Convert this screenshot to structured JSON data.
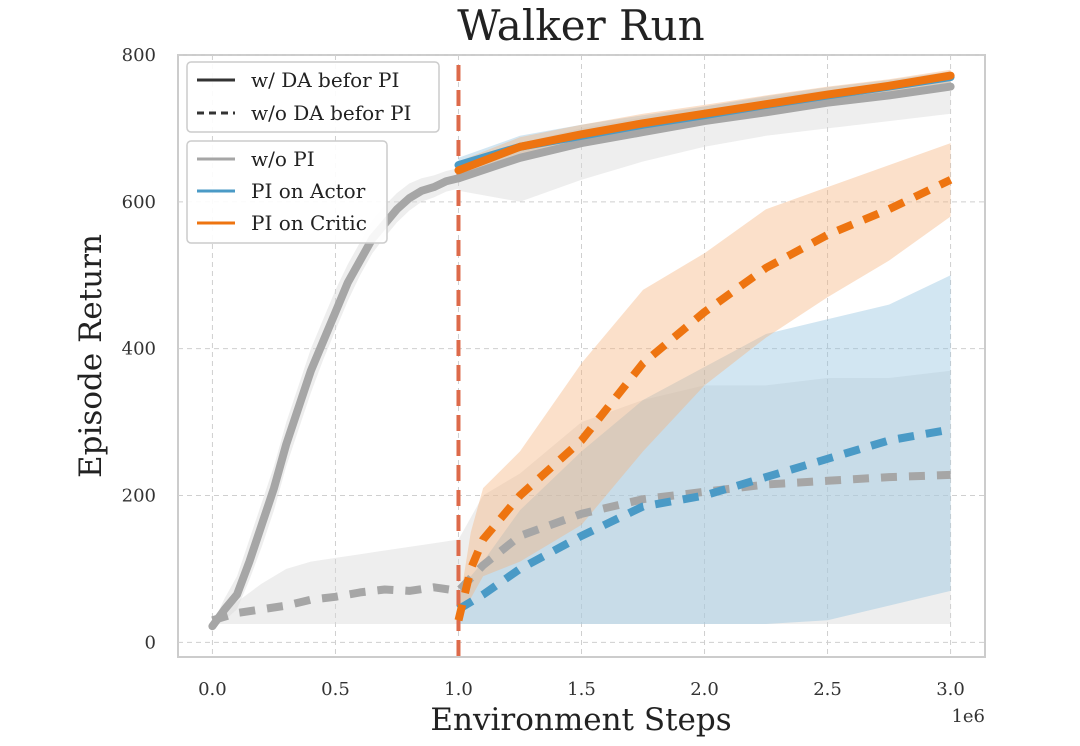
{
  "chart_data": {
    "type": "line",
    "title": "Walker Run",
    "xlabel": "Environment Steps",
    "ylabel": "Episode Return",
    "x_scale_label": "1e6",
    "xlim": [
      -0.14,
      3.14
    ],
    "ylim": [
      -20,
      800
    ],
    "x_ticks": [
      0.0,
      0.5,
      1.0,
      1.5,
      2.0,
      2.5,
      3.0
    ],
    "x_tick_labels": [
      "0.0",
      "0.5",
      "1.0",
      "1.5",
      "2.0",
      "2.5",
      "3.0"
    ],
    "y_ticks": [
      0,
      200,
      400,
      600,
      800
    ],
    "y_tick_labels": [
      "0",
      "200",
      "400",
      "600",
      "800"
    ],
    "grid": true,
    "vline": {
      "x": 1.0,
      "color": "#dd6a4a",
      "style": "dashed"
    },
    "colors": {
      "wo_pi": "#a6a6a6",
      "pi_actor": "#4a9ac6",
      "pi_critic": "#ee7410"
    },
    "legend_style": [
      {
        "label": "w/ DA befor PI",
        "style": "solid"
      },
      {
        "label": "w/o DA befor PI",
        "style": "dashed"
      }
    ],
    "legend_methods": [
      {
        "label": "w/o PI",
        "color": "#a6a6a6"
      },
      {
        "label": "PI on Actor",
        "color": "#4a9ac6"
      },
      {
        "label": "PI on Critic",
        "color": "#ee7410"
      }
    ],
    "series": [
      {
        "name": "w/o PI (w/ DA)",
        "method": "wo_pi",
        "style": "solid",
        "x": [
          0,
          0.05,
          0.1,
          0.15,
          0.2,
          0.25,
          0.3,
          0.35,
          0.4,
          0.45,
          0.5,
          0.55,
          0.6,
          0.65,
          0.7,
          0.75,
          0.8,
          0.85,
          0.9,
          0.95,
          1.0
        ],
        "y": [
          22,
          45,
          65,
          110,
          160,
          210,
          270,
          320,
          370,
          410,
          450,
          490,
          520,
          550,
          570,
          590,
          605,
          615,
          620,
          628,
          632
        ],
        "lower": [
          20,
          30,
          45,
          85,
          130,
          180,
          240,
          290,
          340,
          385,
          425,
          465,
          500,
          530,
          552,
          572,
          588,
          600,
          606,
          614,
          618
        ],
        "upper": [
          25,
          60,
          90,
          140,
          190,
          240,
          300,
          350,
          400,
          440,
          480,
          515,
          545,
          575,
          595,
          612,
          625,
          632,
          636,
          642,
          646
        ]
      },
      {
        "name": "w/o PI (w/ DA) continued",
        "method": "wo_pi",
        "style": "solid",
        "x": [
          1.0,
          1.25,
          1.5,
          1.75,
          2.0,
          2.25,
          2.5,
          2.75,
          3.0
        ],
        "y": [
          632,
          660,
          680,
          695,
          710,
          722,
          735,
          745,
          757
        ],
        "lower": [
          615,
          600,
          630,
          655,
          675,
          690,
          700,
          710,
          720
        ],
        "upper": [
          650,
          680,
          700,
          715,
          730,
          742,
          752,
          762,
          770
        ]
      },
      {
        "name": "PI on Actor (w/ DA)",
        "method": "pi_actor",
        "style": "solid",
        "x": [
          1.0,
          1.25,
          1.5,
          1.75,
          2.0,
          2.25,
          2.5,
          2.75,
          3.0
        ],
        "y": [
          650,
          675,
          690,
          705,
          718,
          732,
          745,
          757,
          770
        ],
        "lower": [
          640,
          660,
          675,
          690,
          705,
          720,
          735,
          748,
          760
        ],
        "upper": [
          660,
          690,
          705,
          718,
          730,
          744,
          756,
          766,
          778
        ]
      },
      {
        "name": "PI on Critic (w/ DA)",
        "method": "pi_critic",
        "style": "solid",
        "x": [
          1.0,
          1.25,
          1.5,
          1.75,
          2.0,
          2.25,
          2.5,
          2.75,
          3.0
        ],
        "y": [
          643,
          675,
          692,
          707,
          720,
          733,
          746,
          758,
          772
        ],
        "lower": [
          632,
          662,
          680,
          695,
          708,
          722,
          737,
          750,
          762
        ],
        "upper": [
          655,
          688,
          705,
          720,
          732,
          745,
          757,
          767,
          780
        ]
      },
      {
        "name": "w/o PI (w/o DA)",
        "method": "wo_pi",
        "style": "dashed",
        "x": [
          0,
          0.1,
          0.2,
          0.3,
          0.4,
          0.5,
          0.6,
          0.7,
          0.8,
          0.9,
          1.0,
          1.1,
          1.25,
          1.5,
          1.75,
          2.0,
          2.25,
          2.5,
          2.75,
          3.0
        ],
        "y": [
          30,
          40,
          45,
          50,
          58,
          62,
          68,
          72,
          70,
          75,
          70,
          105,
          145,
          175,
          195,
          205,
          215,
          220,
          225,
          228
        ],
        "lower": [
          25,
          25,
          25,
          25,
          25,
          25,
          25,
          25,
          25,
          25,
          25,
          25,
          25,
          25,
          25,
          25,
          25,
          25,
          25,
          25
        ],
        "upper": [
          35,
          55,
          80,
          100,
          110,
          115,
          120,
          125,
          130,
          135,
          140,
          200,
          230,
          300,
          330,
          350,
          350,
          360,
          360,
          370
        ]
      },
      {
        "name": "PI on Actor (w/o DA)",
        "method": "pi_actor",
        "style": "dashed",
        "x": [
          1.0,
          1.1,
          1.25,
          1.5,
          1.75,
          2.0,
          2.25,
          2.5,
          2.75,
          3.0
        ],
        "y": [
          45,
          65,
          100,
          145,
          185,
          200,
          225,
          250,
          275,
          290
        ],
        "lower": [
          25,
          25,
          25,
          25,
          25,
          25,
          25,
          30,
          50,
          70
        ],
        "upper": [
          70,
          110,
          180,
          260,
          330,
          375,
          420,
          440,
          460,
          500
        ]
      },
      {
        "name": "PI on Critic (w/o DA)",
        "method": "pi_critic",
        "style": "dashed",
        "x": [
          1.0,
          1.05,
          1.1,
          1.25,
          1.5,
          1.75,
          2.0,
          2.25,
          2.5,
          2.75,
          3.0
        ],
        "y": [
          30,
          100,
          140,
          200,
          275,
          380,
          450,
          510,
          555,
          590,
          630
        ],
        "lower": [
          25,
          60,
          90,
          110,
          160,
          260,
          350,
          415,
          470,
          520,
          580
        ],
        "upper": [
          45,
          150,
          210,
          260,
          380,
          480,
          530,
          590,
          620,
          650,
          680
        ]
      }
    ]
  }
}
